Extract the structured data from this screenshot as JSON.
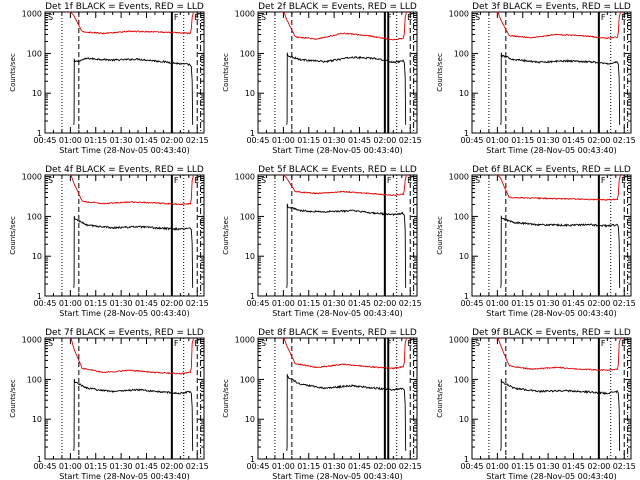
{
  "colors": {
    "events": "#000000",
    "lld": "#e00000",
    "axis": "#000000"
  },
  "common": {
    "xlabel": "Start Time (28-Nov-05 00:43:40)",
    "ylabel": "Counts/sec",
    "x_tick_labels": [
      "00:45",
      "01:00",
      "01:15",
      "01:30",
      "01:45",
      "02:00",
      "02:15"
    ],
    "y_tick_labels": [
      "1",
      "10",
      "100",
      "1000"
    ],
    "start_marker": "S",
    "end_marker": "E",
    "flag_marker": "F",
    "ylim": [
      1,
      1100
    ],
    "yscale": "log"
  },
  "chart_data": [
    {
      "type": "line",
      "title": "Det 1f BLACK = Events, RED = LLD",
      "x_unit": "minutes after 00:45",
      "x_range": [
        0,
        94
      ],
      "saa_start": 17,
      "saa_end": 87,
      "series": [
        {
          "legend": "BLACK = Events",
          "x": [
            17,
            25,
            40,
            55,
            70,
            80,
            86
          ],
          "y": [
            60,
            75,
            68,
            72,
            62,
            55,
            52
          ]
        },
        {
          "legend": "RED = LLD",
          "x": [
            17,
            22,
            35,
            50,
            65,
            80,
            86
          ],
          "y": [
            900,
            350,
            320,
            360,
            350,
            330,
            320
          ]
        }
      ],
      "vlines": {
        "dotted": [
          10,
          82
        ],
        "dashed": [
          20,
          90
        ],
        "solid": [
          75
        ],
        "dashdot": [
          92
        ]
      }
    },
    {
      "type": "line",
      "title": "Det 2f BLACK = Events, RED = LLD",
      "x_unit": "minutes after 00:45",
      "x_range": [
        0,
        94
      ],
      "saa_start": 17,
      "saa_end": 87,
      "series": [
        {
          "legend": "BLACK = Events",
          "x": [
            17,
            25,
            40,
            55,
            70,
            80,
            86
          ],
          "y": [
            90,
            70,
            62,
            80,
            75,
            60,
            65
          ]
        },
        {
          "legend": "RED = LLD",
          "x": [
            17,
            22,
            35,
            50,
            65,
            80,
            86
          ],
          "y": [
            700,
            260,
            230,
            320,
            280,
            220,
            240
          ]
        }
      ],
      "vlines": {
        "dotted": [
          10,
          82
        ],
        "dashed": [
          20,
          90
        ],
        "solid": [
          75,
          77
        ],
        "dashdot": [
          92
        ]
      }
    },
    {
      "type": "line",
      "title": "Det 3f BLACK = Events, RED = LLD",
      "x_unit": "minutes after 00:45",
      "x_range": [
        0,
        94
      ],
      "saa_start": 17,
      "saa_end": 87,
      "series": [
        {
          "legend": "BLACK = Events",
          "x": [
            17,
            25,
            40,
            55,
            70,
            80,
            86
          ],
          "y": [
            90,
            70,
            60,
            65,
            62,
            55,
            60
          ]
        },
        {
          "legend": "RED = LLD",
          "x": [
            17,
            22,
            35,
            50,
            65,
            80,
            86
          ],
          "y": [
            700,
            280,
            250,
            300,
            280,
            240,
            260
          ]
        }
      ],
      "vlines": {
        "dotted": [
          10,
          82
        ],
        "dashed": [
          20,
          90
        ],
        "solid": [
          75
        ],
        "dashdot": [
          92
        ]
      }
    },
    {
      "type": "line",
      "title": "Det 4f BLACK = Events, RED = LLD",
      "x_unit": "minutes after 00:45",
      "x_range": [
        0,
        94
      ],
      "saa_start": 17,
      "saa_end": 87,
      "series": [
        {
          "legend": "BLACK = Events",
          "x": [
            17,
            25,
            40,
            55,
            70,
            80,
            86
          ],
          "y": [
            90,
            60,
            52,
            55,
            50,
            48,
            52
          ]
        },
        {
          "legend": "RED = LLD",
          "x": [
            17,
            22,
            35,
            50,
            65,
            80,
            86
          ],
          "y": [
            700,
            240,
            210,
            230,
            220,
            200,
            210
          ]
        }
      ],
      "vlines": {
        "dotted": [
          10,
          82
        ],
        "dashed": [
          20,
          90
        ],
        "solid": [
          75
        ],
        "dashdot": [
          92
        ]
      }
    },
    {
      "type": "line",
      "title": "Det 5f BLACK = Events, RED = LLD",
      "x_unit": "minutes after 00:45",
      "x_range": [
        0,
        94
      ],
      "saa_start": 17,
      "saa_end": 87,
      "series": [
        {
          "legend": "BLACK = Events",
          "x": [
            17,
            25,
            40,
            55,
            70,
            80,
            86
          ],
          "y": [
            180,
            140,
            130,
            140,
            120,
            110,
            120
          ]
        },
        {
          "legend": "RED = LLD",
          "x": [
            17,
            22,
            35,
            50,
            65,
            80,
            86
          ],
          "y": [
            900,
            420,
            380,
            420,
            380,
            340,
            360
          ]
        }
      ],
      "vlines": {
        "dotted": [
          10,
          82
        ],
        "dashed": [
          20,
          90
        ],
        "solid": [
          75
        ],
        "dashdot": [
          92
        ]
      }
    },
    {
      "type": "line",
      "title": "Det 6f BLACK = Events, RED = LLD",
      "x_unit": "minutes after 00:45",
      "x_range": [
        0,
        94
      ],
      "saa_start": 17,
      "saa_end": 87,
      "series": [
        {
          "legend": "BLACK = Events",
          "x": [
            17,
            25,
            40,
            55,
            70,
            80,
            86
          ],
          "y": [
            90,
            70,
            62,
            60,
            62,
            58,
            62
          ]
        },
        {
          "legend": "RED = LLD",
          "x": [
            17,
            22,
            35,
            50,
            65,
            80,
            86
          ],
          "y": [
            900,
            300,
            290,
            280,
            270,
            260,
            270
          ]
        }
      ],
      "vlines": {
        "dotted": [
          10,
          82
        ],
        "dashed": [
          20,
          90
        ],
        "solid": [
          75
        ],
        "dashdot": [
          92
        ]
      }
    },
    {
      "type": "line",
      "title": "Det 7f BLACK = Events, RED = LLD",
      "x_unit": "minutes after 00:45",
      "x_range": [
        0,
        94
      ],
      "saa_start": 17,
      "saa_end": 87,
      "series": [
        {
          "legend": "BLACK = Events",
          "x": [
            17,
            25,
            40,
            55,
            70,
            80,
            86
          ],
          "y": [
            90,
            60,
            50,
            55,
            48,
            45,
            50
          ]
        },
        {
          "legend": "RED = LLD",
          "x": [
            17,
            22,
            35,
            50,
            65,
            80,
            86
          ],
          "y": [
            600,
            190,
            150,
            170,
            150,
            140,
            150
          ]
        }
      ],
      "vlines": {
        "dotted": [
          10,
          82
        ],
        "dashed": [
          20,
          90
        ],
        "solid": [
          75
        ],
        "dashdot": [
          92
        ]
      }
    },
    {
      "type": "line",
      "title": "Det 8f BLACK = Events, RED = LLD",
      "x_unit": "minutes after 00:45",
      "x_range": [
        0,
        94
      ],
      "saa_start": 17,
      "saa_end": 87,
      "series": [
        {
          "legend": "BLACK = Events",
          "x": [
            17,
            25,
            40,
            55,
            70,
            80,
            86
          ],
          "y": [
            120,
            75,
            60,
            70,
            60,
            55,
            60
          ]
        },
        {
          "legend": "RED = LLD",
          "x": [
            17,
            22,
            35,
            50,
            65,
            80,
            86
          ],
          "y": [
            700,
            250,
            200,
            240,
            210,
            190,
            210
          ]
        }
      ],
      "vlines": {
        "dotted": [
          10,
          82
        ],
        "dashed": [
          20,
          90
        ],
        "solid": [
          75,
          77
        ],
        "dashdot": [
          92
        ]
      }
    },
    {
      "type": "line",
      "title": "Det 9f BLACK = Events, RED = LLD",
      "x_unit": "minutes after 00:45",
      "x_range": [
        0,
        94
      ],
      "saa_start": 17,
      "saa_end": 87,
      "series": [
        {
          "legend": "BLACK = Events",
          "x": [
            17,
            25,
            40,
            55,
            70,
            80,
            86
          ],
          "y": [
            90,
            60,
            50,
            52,
            48,
            45,
            50
          ]
        },
        {
          "legend": "RED = LLD",
          "x": [
            17,
            22,
            35,
            50,
            65,
            80,
            86
          ],
          "y": [
            700,
            220,
            180,
            200,
            180,
            170,
            180
          ]
        }
      ],
      "vlines": {
        "dotted": [
          10,
          82
        ],
        "dashed": [
          20,
          90
        ],
        "solid": [
          75
        ],
        "dashdot": [
          92
        ]
      }
    }
  ]
}
